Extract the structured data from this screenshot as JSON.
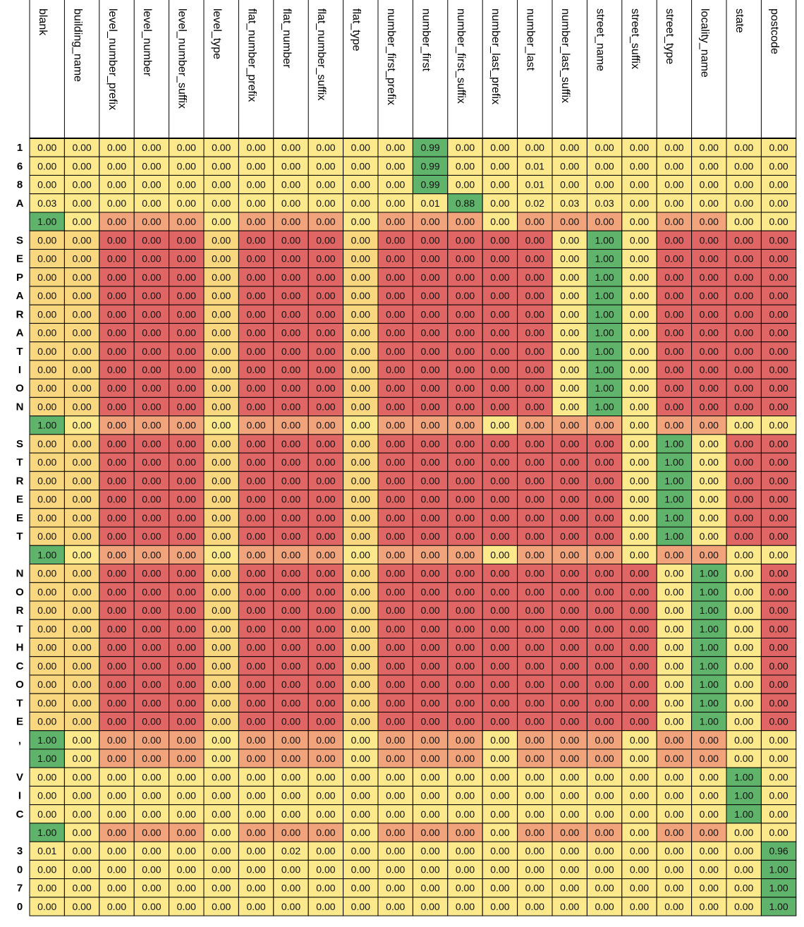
{
  "chart_data": {
    "type": "heatmap",
    "title": "",
    "xlabel": "",
    "ylabel": "",
    "columns": [
      "blank",
      "building_name",
      "level_number_prefix",
      "level_number",
      "level_number_suffix",
      "level_type",
      "flat_number_prefix",
      "flat_number",
      "flat_number_suffix",
      "flat_type",
      "number_first_prefix",
      "number_first",
      "number_first_suffix",
      "number_last_prefix",
      "number_last",
      "number_last_suffix",
      "street_name",
      "street_suffix",
      "street_type",
      "locality_name",
      "state",
      "postcode"
    ],
    "rows": [
      {
        "label": "1",
        "values": [
          0,
          0,
          0,
          0,
          0,
          0,
          0,
          0,
          0,
          0,
          0,
          0.99,
          0,
          0,
          0,
          0,
          0,
          0,
          0,
          0,
          0,
          0
        ]
      },
      {
        "label": "6",
        "values": [
          0,
          0,
          0,
          0,
          0,
          0,
          0,
          0,
          0,
          0,
          0,
          0.99,
          0,
          0,
          0.01,
          0,
          0,
          0,
          0,
          0,
          0,
          0
        ]
      },
      {
        "label": "8",
        "values": [
          0,
          0,
          0,
          0,
          0,
          0,
          0,
          0,
          0,
          0,
          0,
          0.99,
          0,
          0,
          0.01,
          0,
          0,
          0,
          0,
          0,
          0,
          0
        ]
      },
      {
        "label": "A",
        "values": [
          0.03,
          0,
          0,
          0,
          0,
          0,
          0,
          0,
          0,
          0,
          0,
          0.01,
          0.88,
          0,
          0.02,
          0.03,
          0.03,
          0,
          0,
          0,
          0,
          0
        ]
      },
      {
        "label": "",
        "values": [
          1,
          0,
          0,
          0,
          0,
          0,
          0,
          0,
          0,
          0,
          0,
          0,
          0,
          0,
          0,
          0,
          0,
          0,
          0,
          0,
          0,
          0
        ]
      },
      {
        "label": "S",
        "values": [
          0,
          0,
          0,
          0,
          0,
          0,
          0,
          0,
          0,
          0,
          0,
          0,
          0,
          0,
          0,
          0,
          1,
          0,
          0,
          0,
          0,
          0
        ]
      },
      {
        "label": "E",
        "values": [
          0,
          0,
          0,
          0,
          0,
          0,
          0,
          0,
          0,
          0,
          0,
          0,
          0,
          0,
          0,
          0,
          1,
          0,
          0,
          0,
          0,
          0
        ]
      },
      {
        "label": "P",
        "values": [
          0,
          0,
          0,
          0,
          0,
          0,
          0,
          0,
          0,
          0,
          0,
          0,
          0,
          0,
          0,
          0,
          1,
          0,
          0,
          0,
          0,
          0
        ]
      },
      {
        "label": "A",
        "values": [
          0,
          0,
          0,
          0,
          0,
          0,
          0,
          0,
          0,
          0,
          0,
          0,
          0,
          0,
          0,
          0,
          1,
          0,
          0,
          0,
          0,
          0
        ]
      },
      {
        "label": "R",
        "values": [
          0,
          0,
          0,
          0,
          0,
          0,
          0,
          0,
          0,
          0,
          0,
          0,
          0,
          0,
          0,
          0,
          1,
          0,
          0,
          0,
          0,
          0
        ]
      },
      {
        "label": "A",
        "values": [
          0,
          0,
          0,
          0,
          0,
          0,
          0,
          0,
          0,
          0,
          0,
          0,
          0,
          0,
          0,
          0,
          1,
          0,
          0,
          0,
          0,
          0
        ]
      },
      {
        "label": "T",
        "values": [
          0,
          0,
          0,
          0,
          0,
          0,
          0,
          0,
          0,
          0,
          0,
          0,
          0,
          0,
          0,
          0,
          1,
          0,
          0,
          0,
          0,
          0
        ]
      },
      {
        "label": "I",
        "values": [
          0,
          0,
          0,
          0,
          0,
          0,
          0,
          0,
          0,
          0,
          0,
          0,
          0,
          0,
          0,
          0,
          1,
          0,
          0,
          0,
          0,
          0
        ]
      },
      {
        "label": "O",
        "values": [
          0,
          0,
          0,
          0,
          0,
          0,
          0,
          0,
          0,
          0,
          0,
          0,
          0,
          0,
          0,
          0,
          1,
          0,
          0,
          0,
          0,
          0
        ]
      },
      {
        "label": "N",
        "values": [
          0,
          0,
          0,
          0,
          0,
          0,
          0,
          0,
          0,
          0,
          0,
          0,
          0,
          0,
          0,
          0,
          1,
          0,
          0,
          0,
          0,
          0
        ]
      },
      {
        "label": "",
        "values": [
          1,
          0,
          0,
          0,
          0,
          0,
          0,
          0,
          0,
          0,
          0,
          0,
          0,
          0,
          0,
          0,
          0,
          0,
          0,
          0,
          0,
          0
        ]
      },
      {
        "label": "S",
        "values": [
          0,
          0,
          0,
          0,
          0,
          0,
          0,
          0,
          0,
          0,
          0,
          0,
          0,
          0,
          0,
          0,
          0,
          0,
          1,
          0,
          0,
          0
        ]
      },
      {
        "label": "T",
        "values": [
          0,
          0,
          0,
          0,
          0,
          0,
          0,
          0,
          0,
          0,
          0,
          0,
          0,
          0,
          0,
          0,
          0,
          0,
          1,
          0,
          0,
          0
        ]
      },
      {
        "label": "R",
        "values": [
          0,
          0,
          0,
          0,
          0,
          0,
          0,
          0,
          0,
          0,
          0,
          0,
          0,
          0,
          0,
          0,
          0,
          0,
          1,
          0,
          0,
          0
        ]
      },
      {
        "label": "E",
        "values": [
          0,
          0,
          0,
          0,
          0,
          0,
          0,
          0,
          0,
          0,
          0,
          0,
          0,
          0,
          0,
          0,
          0,
          0,
          1,
          0,
          0,
          0
        ]
      },
      {
        "label": "E",
        "values": [
          0,
          0,
          0,
          0,
          0,
          0,
          0,
          0,
          0,
          0,
          0,
          0,
          0,
          0,
          0,
          0,
          0,
          0,
          1,
          0,
          0,
          0
        ]
      },
      {
        "label": "T",
        "values": [
          0,
          0,
          0,
          0,
          0,
          0,
          0,
          0,
          0,
          0,
          0,
          0,
          0,
          0,
          0,
          0,
          0,
          0,
          1,
          0,
          0,
          0
        ]
      },
      {
        "label": "",
        "values": [
          1,
          0,
          0,
          0,
          0,
          0,
          0,
          0,
          0,
          0,
          0,
          0,
          0,
          0,
          0,
          0,
          0,
          0,
          0,
          0,
          0,
          0
        ]
      },
      {
        "label": "N",
        "values": [
          0,
          0,
          0,
          0,
          0,
          0,
          0,
          0,
          0,
          0,
          0,
          0,
          0,
          0,
          0,
          0,
          0,
          0,
          0,
          1,
          0,
          0
        ]
      },
      {
        "label": "O",
        "values": [
          0,
          0,
          0,
          0,
          0,
          0,
          0,
          0,
          0,
          0,
          0,
          0,
          0,
          0,
          0,
          0,
          0,
          0,
          0,
          1,
          0,
          0
        ]
      },
      {
        "label": "R",
        "values": [
          0,
          0,
          0,
          0,
          0,
          0,
          0,
          0,
          0,
          0,
          0,
          0,
          0,
          0,
          0,
          0,
          0,
          0,
          0,
          1,
          0,
          0
        ]
      },
      {
        "label": "T",
        "values": [
          0,
          0,
          0,
          0,
          0,
          0,
          0,
          0,
          0,
          0,
          0,
          0,
          0,
          0,
          0,
          0,
          0,
          0,
          0,
          1,
          0,
          0
        ]
      },
      {
        "label": "H",
        "values": [
          0,
          0,
          0,
          0,
          0,
          0,
          0,
          0,
          0,
          0,
          0,
          0,
          0,
          0,
          0,
          0,
          0,
          0,
          0,
          1,
          0,
          0
        ]
      },
      {
        "label": "C",
        "values": [
          0,
          0,
          0,
          0,
          0,
          0,
          0,
          0,
          0,
          0,
          0,
          0,
          0,
          0,
          0,
          0,
          0,
          0,
          0,
          1,
          0,
          0
        ]
      },
      {
        "label": "O",
        "values": [
          0,
          0,
          0,
          0,
          0,
          0,
          0,
          0,
          0,
          0,
          0,
          0,
          0,
          0,
          0,
          0,
          0,
          0,
          0,
          1,
          0,
          0
        ]
      },
      {
        "label": "T",
        "values": [
          0,
          0,
          0,
          0,
          0,
          0,
          0,
          0,
          0,
          0,
          0,
          0,
          0,
          0,
          0,
          0,
          0,
          0,
          0,
          1,
          0,
          0
        ]
      },
      {
        "label": "E",
        "values": [
          0,
          0,
          0,
          0,
          0,
          0,
          0,
          0,
          0,
          0,
          0,
          0,
          0,
          0,
          0,
          0,
          0,
          0,
          0,
          1,
          0,
          0
        ]
      },
      {
        "label": ",",
        "values": [
          1,
          0,
          0,
          0,
          0,
          0,
          0,
          0,
          0,
          0,
          0,
          0,
          0,
          0,
          0,
          0,
          0,
          0,
          0,
          0,
          0,
          0
        ]
      },
      {
        "label": "",
        "values": [
          1,
          0,
          0,
          0,
          0,
          0,
          0,
          0,
          0,
          0,
          0,
          0,
          0,
          0,
          0,
          0,
          0,
          0,
          0,
          0,
          0,
          0
        ]
      },
      {
        "label": "V",
        "values": [
          0,
          0,
          0,
          0,
          0,
          0,
          0,
          0,
          0,
          0,
          0,
          0,
          0,
          0,
          0,
          0,
          0,
          0,
          0,
          0,
          1,
          0
        ]
      },
      {
        "label": "I",
        "values": [
          0,
          0,
          0,
          0,
          0,
          0,
          0,
          0,
          0,
          0,
          0,
          0,
          0,
          0,
          0,
          0,
          0,
          0,
          0,
          0,
          1,
          0
        ]
      },
      {
        "label": "C",
        "values": [
          0,
          0,
          0,
          0,
          0,
          0,
          0,
          0,
          0,
          0,
          0,
          0,
          0,
          0,
          0,
          0,
          0,
          0,
          0,
          0,
          1,
          0
        ]
      },
      {
        "label": "",
        "values": [
          1,
          0,
          0,
          0,
          0,
          0,
          0,
          0,
          0,
          0,
          0,
          0,
          0,
          0,
          0,
          0,
          0,
          0,
          0,
          0,
          0,
          0
        ]
      },
      {
        "label": "3",
        "values": [
          0.01,
          0,
          0,
          0,
          0,
          0,
          0,
          0.02,
          0,
          0,
          0,
          0,
          0,
          0,
          0,
          0,
          0,
          0,
          0,
          0,
          0,
          0.96
        ]
      },
      {
        "label": "0",
        "values": [
          0,
          0,
          0,
          0,
          0,
          0,
          0,
          0,
          0,
          0,
          0,
          0,
          0,
          0,
          0,
          0,
          0,
          0,
          0,
          0,
          0,
          1
        ]
      },
      {
        "label": "7",
        "values": [
          0,
          0,
          0,
          0,
          0,
          0,
          0,
          0,
          0,
          0,
          0,
          0,
          0,
          0,
          0,
          0,
          0,
          0,
          0,
          0,
          0,
          1
        ]
      },
      {
        "label": "0",
        "values": [
          0,
          0,
          0,
          0,
          0,
          0,
          0,
          0,
          0,
          0,
          0,
          0,
          0,
          0,
          0,
          0,
          0,
          0,
          0,
          0,
          0,
          1
        ]
      }
    ],
    "colors": {
      "high": "#5fb36b",
      "neutral": "#fce98c",
      "light": "#f9d77f",
      "medium": "#f1a47c",
      "low": "#e06666",
      "border": "#000000"
    },
    "legend": "none",
    "grid": true
  }
}
